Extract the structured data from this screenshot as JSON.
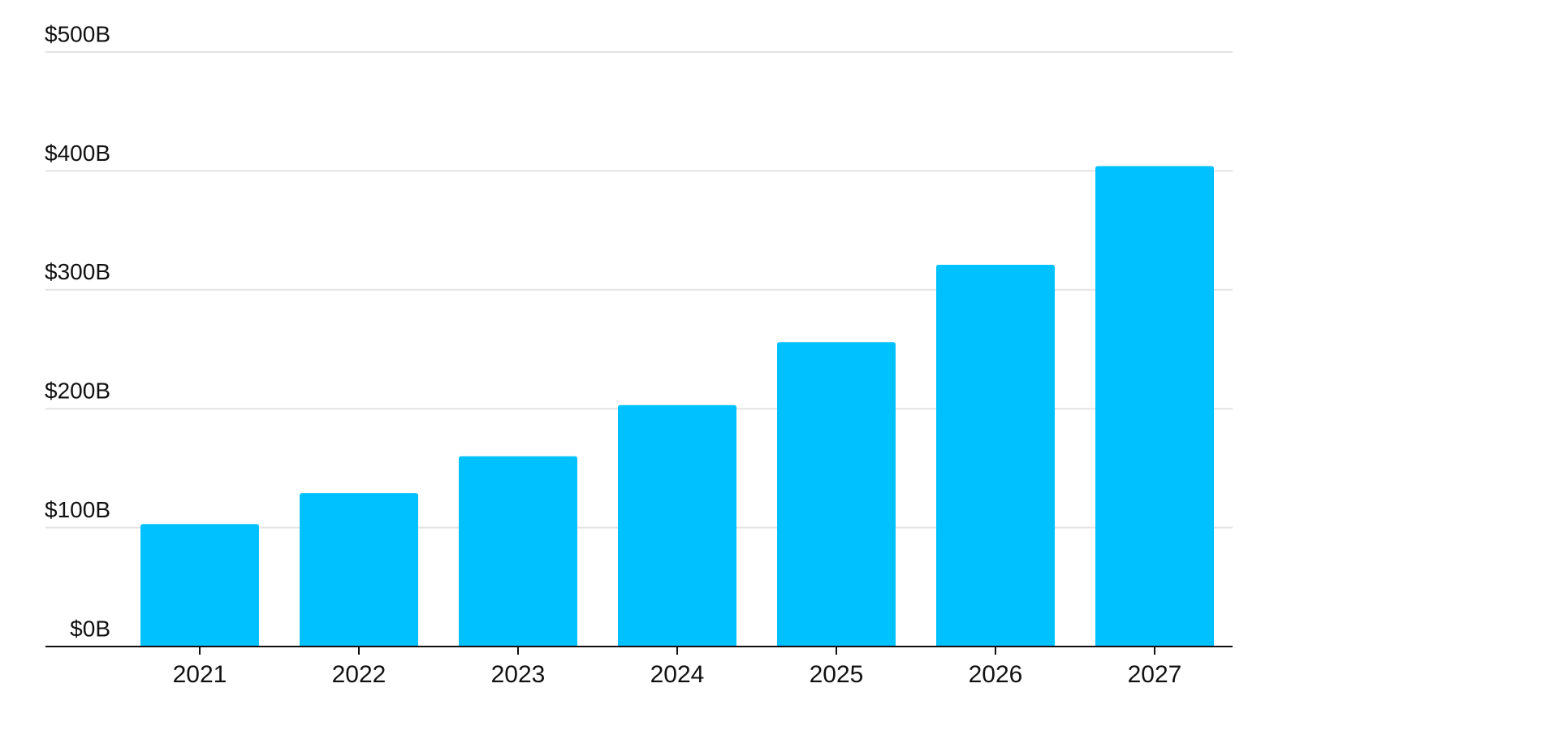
{
  "chart_data": {
    "type": "bar",
    "title": "",
    "xlabel": "",
    "ylabel": "",
    "categories": [
      "2021",
      "2022",
      "2023",
      "2024",
      "2025",
      "2026",
      "2027"
    ],
    "values": [
      103,
      129,
      160,
      203,
      256,
      321,
      404
    ],
    "ylim": [
      0,
      500
    ],
    "y_ticks": [
      0,
      100,
      200,
      300,
      400,
      500
    ],
    "y_tick_labels": [
      "$0B",
      "$100B",
      "$200B",
      "$300B",
      "$400B",
      "$500B"
    ],
    "grid": true,
    "legend": "none",
    "colors": {
      "bar": "#00C1FF",
      "grid": "#E3E3E3",
      "axis": "#111111",
      "text": "#111111"
    }
  }
}
